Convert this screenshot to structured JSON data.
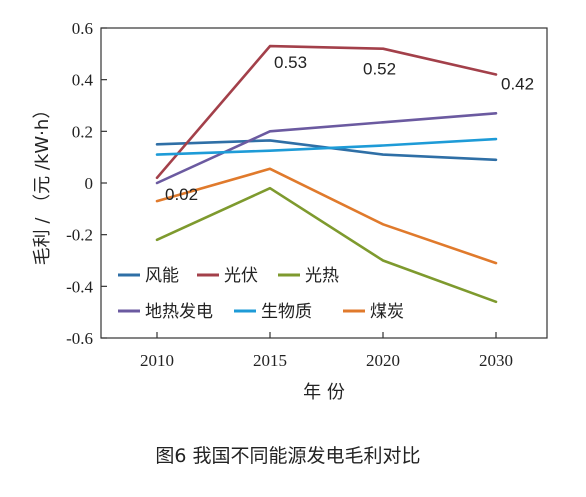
{
  "chart_data": {
    "type": "line",
    "categories": [
      "2010",
      "2015",
      "2020",
      "2030"
    ],
    "series": [
      {
        "name": "风能",
        "color": "#2f6fa6",
        "values": [
          0.15,
          0.165,
          0.11,
          0.09
        ]
      },
      {
        "name": "光伏",
        "color": "#a3404a",
        "values": [
          0.02,
          0.53,
          0.52,
          0.42
        ]
      },
      {
        "name": "光热",
        "color": "#7e9a2e",
        "values": [
          -0.22,
          -0.02,
          -0.3,
          -0.46
        ]
      },
      {
        "name": "地热发电",
        "color": "#6b5aa0",
        "values": [
          0.0,
          0.2,
          0.235,
          0.27
        ]
      },
      {
        "name": "生物质",
        "color": "#1e9bd7",
        "values": [
          0.11,
          0.125,
          0.145,
          0.17
        ]
      },
      {
        "name": "煤炭",
        "color": "#e07a2c",
        "values": [
          -0.07,
          0.055,
          -0.16,
          -0.31
        ]
      }
    ],
    "annotations": [
      {
        "text": "0.02",
        "series": "光伏",
        "category": "2010"
      },
      {
        "text": "0.53",
        "series": "光伏",
        "category": "2015"
      },
      {
        "text": "0.52",
        "series": "光伏",
        "category": "2020"
      },
      {
        "text": "0.42",
        "series": "光伏",
        "category": "2030"
      }
    ],
    "xlabel": "年 份",
    "ylabel": "毛利 / （元 /kW·h）",
    "ylim": [
      -0.6,
      0.6
    ],
    "yticks": [
      -0.6,
      -0.4,
      -0.2,
      0,
      0.2,
      0.4,
      0.6
    ],
    "ytick_labels": [
      "-0.6",
      "-0.4",
      "-0.2",
      "0",
      "0.2",
      "0.4",
      "0.6"
    ],
    "grid": false,
    "legend_position": "bottom-left inside plot",
    "caption": "图6    我国不同能源发电毛利对比"
  }
}
